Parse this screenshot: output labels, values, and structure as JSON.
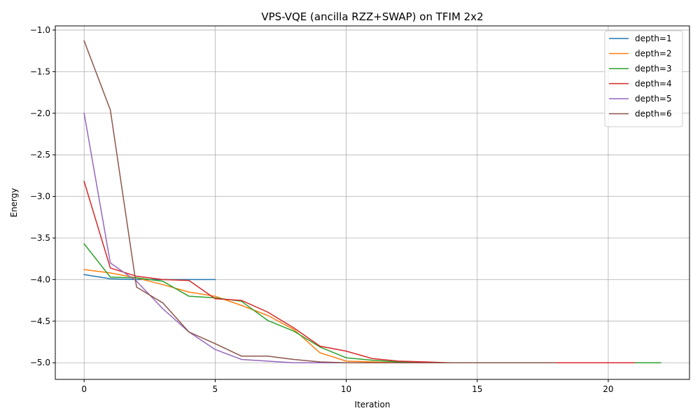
{
  "chart_data": {
    "type": "line",
    "title": "VPS-VQE (ancilla RZZ+SWAP) on TFIM 2x2",
    "xlabel": "Iteration",
    "ylabel": "Energy",
    "xlim": [
      -1.1,
      23.1
    ],
    "ylim": [
      -5.2,
      -0.95
    ],
    "xticks": [
      0,
      5,
      10,
      15,
      20
    ],
    "xtick_labels": [
      "0",
      "5",
      "10",
      "15",
      "20"
    ],
    "yticks": [
      -1.0,
      -1.5,
      -2.0,
      -2.5,
      -3.0,
      -3.5,
      -4.0,
      -4.5,
      -5.0
    ],
    "ytick_labels": [
      "−1.0",
      "−1.5",
      "−2.0",
      "−2.5",
      "−3.0",
      "−3.5",
      "−4.0",
      "−4.5",
      "−5.0"
    ],
    "grid": true,
    "legend_position": "top-right",
    "series": [
      {
        "name": "depth=1",
        "color": "#1f77b4",
        "x": [
          0,
          1,
          2,
          3,
          4,
          5
        ],
        "y": [
          -3.94,
          -3.99,
          -4.0,
          -4.0,
          -4.0,
          -4.0
        ]
      },
      {
        "name": "depth=2",
        "color": "#ff7f0e",
        "x": [
          0,
          1,
          2,
          3,
          4,
          5,
          6,
          7,
          8,
          9,
          10,
          11,
          12,
          13,
          14,
          15,
          16,
          17,
          18,
          19,
          20,
          21
        ],
        "y": [
          -3.88,
          -3.92,
          -3.98,
          -4.06,
          -4.15,
          -4.2,
          -4.31,
          -4.43,
          -4.6,
          -4.88,
          -4.98,
          -4.99,
          -5.0,
          -5.0,
          -5.0,
          -5.0,
          -5.0,
          -5.0,
          -5.0,
          -5.0,
          -5.0,
          -5.0
        ]
      },
      {
        "name": "depth=3",
        "color": "#2ca02c",
        "x": [
          0,
          1,
          2,
          3,
          4,
          5,
          6,
          7,
          8,
          9,
          10,
          11,
          12,
          13,
          14,
          15,
          16,
          17,
          18,
          19,
          20,
          21,
          22
        ],
        "y": [
          -3.57,
          -3.97,
          -3.98,
          -4.02,
          -4.2,
          -4.22,
          -4.26,
          -4.49,
          -4.62,
          -4.81,
          -4.94,
          -4.97,
          -4.99,
          -5.0,
          -5.0,
          -5.0,
          -5.0,
          -5.0,
          -5.0,
          -5.0,
          -5.0,
          -5.0,
          -5.0
        ]
      },
      {
        "name": "depth=4",
        "color": "#d62728",
        "x": [
          0,
          1,
          2,
          3,
          4,
          5,
          6,
          7,
          8,
          9,
          10,
          11,
          12,
          13,
          14,
          15,
          16,
          17,
          18,
          19,
          20,
          21
        ],
        "y": [
          -2.82,
          -3.86,
          -3.96,
          -4.0,
          -4.01,
          -4.23,
          -4.25,
          -4.39,
          -4.58,
          -4.8,
          -4.86,
          -4.95,
          -4.98,
          -4.99,
          -5.0,
          -5.0,
          -5.0,
          -5.0,
          -5.0,
          -5.0,
          -5.0,
          -5.0
        ]
      },
      {
        "name": "depth=5",
        "color": "#9467bd",
        "x": [
          0,
          1,
          2,
          3,
          4,
          5,
          6,
          7,
          8,
          9,
          10,
          11,
          12,
          13,
          14,
          15,
          16,
          17,
          18
        ],
        "y": [
          -2.0,
          -3.8,
          -4.02,
          -4.35,
          -4.63,
          -4.84,
          -4.96,
          -4.98,
          -5.0,
          -5.0,
          -5.0,
          -5.0,
          -5.0,
          -5.0,
          -5.0,
          -5.0,
          -5.0,
          -5.0,
          -5.0
        ]
      },
      {
        "name": "depth=6",
        "color": "#8c564b",
        "x": [
          0,
          1,
          2,
          3,
          4,
          5,
          6,
          7,
          8,
          9,
          10,
          11,
          12,
          13,
          14,
          15,
          16,
          17,
          18
        ],
        "y": [
          -1.13,
          -1.96,
          -4.09,
          -4.28,
          -4.63,
          -4.77,
          -4.92,
          -4.92,
          -4.96,
          -4.99,
          -5.0,
          -5.0,
          -5.0,
          -5.0,
          -5.0,
          -5.0,
          -5.0,
          -5.0,
          -5.0
        ]
      }
    ]
  }
}
